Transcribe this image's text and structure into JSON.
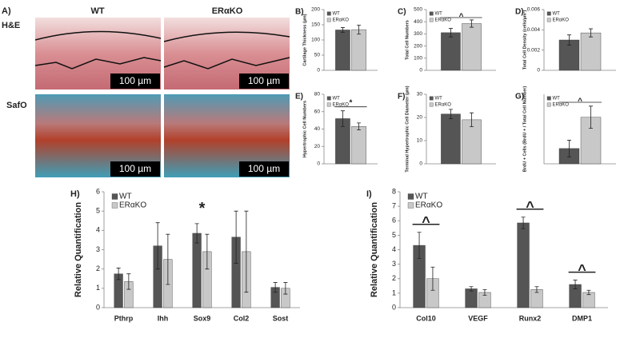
{
  "panel_a": {
    "label": "A)",
    "columns": [
      "WT",
      "ERαKO"
    ],
    "rows": [
      "H&E",
      "SafO"
    ],
    "scale_bar": "100 µm"
  },
  "chart_data": [
    {
      "type": "bar",
      "panel": "B)",
      "y_label": "Cartilage Thickness (µm)",
      "ylim": [
        0,
        200
      ],
      "yticks": [
        0,
        50,
        100,
        150,
        200
      ],
      "series": [
        {
          "name": "WT",
          "color": "#555555",
          "values": [
            133
          ],
          "errors": [
            8
          ]
        },
        {
          "name": "ERαKO",
          "color": "#c8c8c8",
          "values": [
            134
          ],
          "errors": [
            15
          ]
        }
      ]
    },
    {
      "type": "bar",
      "panel": "C)",
      "y_label": "Total Cell Numbers",
      "ylim": [
        0,
        500
      ],
      "yticks": [
        0,
        100,
        200,
        300,
        400,
        500
      ],
      "series": [
        {
          "name": "WT",
          "color": "#555555",
          "values": [
            310
          ],
          "errors": [
            35
          ]
        },
        {
          "name": "ERαKO",
          "color": "#c8c8c8",
          "values": [
            385
          ],
          "errors": [
            30
          ]
        }
      ],
      "annotations": [
        {
          "text": "^"
        }
      ]
    },
    {
      "type": "bar",
      "panel": "D)",
      "y_label": "Total Cell Density (cells/µm²)",
      "ylim": [
        0,
        0.006
      ],
      "yticks": [
        0,
        0.002,
        0.004,
        0.006
      ],
      "series": [
        {
          "name": "WT",
          "color": "#555555",
          "values": [
            0.003
          ],
          "errors": [
            0.0005
          ]
        },
        {
          "name": "ERαKO",
          "color": "#c8c8c8",
          "values": [
            0.0037
          ],
          "errors": [
            0.0004
          ]
        }
      ]
    },
    {
      "type": "bar",
      "panel": "E)",
      "y_label": "Hypertrophic Cell Numbers",
      "ylim": [
        0,
        80
      ],
      "yticks": [
        0,
        20,
        40,
        60,
        80
      ],
      "series": [
        {
          "name": "WT",
          "color": "#555555",
          "values": [
            52
          ],
          "errors": [
            9
          ]
        },
        {
          "name": "ERαKO",
          "color": "#c8c8c8",
          "values": [
            43
          ],
          "errors": [
            4
          ]
        }
      ],
      "annotations": [
        {
          "text": "*"
        }
      ]
    },
    {
      "type": "bar",
      "panel": "F)",
      "y_label": "Terminal Hypertrophic Cell Diameter (µm)",
      "ylim": [
        0,
        30
      ],
      "yticks": [
        0,
        10,
        20,
        30
      ],
      "series": [
        {
          "name": "WT",
          "color": "#555555",
          "values": [
            21.5
          ],
          "errors": [
            2
          ]
        },
        {
          "name": "ERαKO",
          "color": "#c8c8c8",
          "values": [
            19
          ],
          "errors": [
            3
          ]
        }
      ]
    },
    {
      "type": "bar",
      "panel": "G)",
      "y_label": "BrdU + Cells (BrdU + / Total Cell Number)",
      "ylim": [
        0,
        5
      ],
      "series": [
        {
          "name": "WT",
          "color": "#555555",
          "values": [
            1.1
          ],
          "errors": [
            0.6
          ]
        },
        {
          "name": "ERαKO",
          "color": "#c8c8c8",
          "values": [
            3.35
          ],
          "errors": [
            0.8
          ]
        }
      ],
      "annotations": [
        {
          "text": "^"
        }
      ]
    },
    {
      "type": "bar",
      "panel": "H)",
      "y_label": "Relative Quantification",
      "ylim": [
        0,
        6
      ],
      "yticks": [
        0,
        1,
        2,
        3,
        4,
        5,
        6
      ],
      "categories": [
        "Pthrp",
        "Ihh",
        "Sox9",
        "Col2",
        "Sost"
      ],
      "series": [
        {
          "name": "WT",
          "color": "#555555",
          "values": [
            1.75,
            3.2,
            3.85,
            3.65,
            1.05
          ],
          "errors": [
            0.3,
            1.2,
            0.5,
            1.35,
            0.25
          ]
        },
        {
          "name": "ERαKO",
          "color": "#c8c8c8",
          "values": [
            1.35,
            2.5,
            2.9,
            2.9,
            1.0
          ],
          "errors": [
            0.4,
            1.3,
            0.9,
            2.1,
            0.3
          ]
        }
      ],
      "annotations": [
        {
          "text": "*",
          "category": "Sox9"
        }
      ]
    },
    {
      "type": "bar",
      "panel": "I)",
      "y_label": "Relative Quantification",
      "ylim": [
        0,
        8
      ],
      "yticks": [
        0,
        1,
        2,
        3,
        4,
        5,
        6,
        7,
        8
      ],
      "categories": [
        "Col10",
        "VEGF",
        "Runx2",
        "DMP1"
      ],
      "series": [
        {
          "name": "WT",
          "color": "#555555",
          "values": [
            4.3,
            1.3,
            5.85,
            1.6
          ],
          "errors": [
            0.9,
            0.15,
            0.4,
            0.3
          ]
        },
        {
          "name": "ERαKO",
          "color": "#c8c8c8",
          "values": [
            2.0,
            1.05,
            1.25,
            1.05
          ],
          "errors": [
            0.8,
            0.2,
            0.2,
            0.15
          ]
        }
      ],
      "annotations": [
        {
          "text": "^",
          "category": "Col10"
        },
        {
          "text": "^",
          "category": "Runx2"
        },
        {
          "text": "^",
          "category": "DMP1"
        }
      ]
    }
  ]
}
